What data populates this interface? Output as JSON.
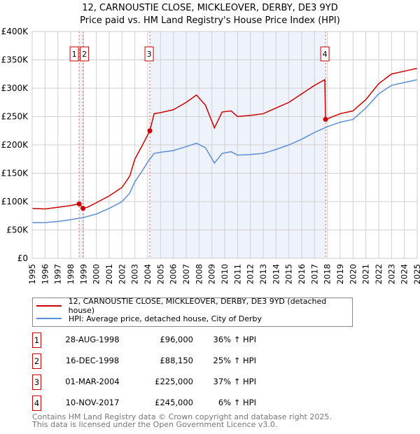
{
  "title": "12, CARNOUSTIE CLOSE, MICKLEOVER, DERBY, DE3 9YD",
  "subtitle": "Price paid vs. HM Land Registry's House Price Index (HPI)",
  "chart_data": {
    "type": "line",
    "xlim": [
      1995,
      2025
    ],
    "ylim": [
      0,
      400000
    ],
    "yticks": [
      0,
      50000,
      100000,
      150000,
      200000,
      250000,
      300000,
      350000,
      400000
    ],
    "ytick_labels": [
      "£0",
      "£50K",
      "£100K",
      "£150K",
      "£200K",
      "£250K",
      "£300K",
      "£350K",
      "£400K"
    ],
    "xticks": [
      1995,
      1996,
      1997,
      1998,
      1999,
      2000,
      2001,
      2002,
      2003,
      2004,
      2005,
      2006,
      2007,
      2008,
      2009,
      2010,
      2011,
      2012,
      2013,
      2014,
      2015,
      2016,
      2017,
      2018,
      2019,
      2020,
      2021,
      2022,
      2023,
      2024,
      2025
    ],
    "grid": true,
    "series": [
      {
        "name": "12, CARNOUSTIE CLOSE, MICKLEOVER, DERBY, DE3 9YD (detached house)",
        "color": "#cc0000",
        "x": [
          1995,
          1996,
          1997,
          1998,
          1998.66,
          1998.96,
          1999.3,
          2000,
          2001,
          2002,
          2002.6,
          2003,
          2003.6,
          2004.17,
          2004.5,
          2005,
          2006,
          2007,
          2007.8,
          2008.5,
          2009.2,
          2009.8,
          2010.5,
          2011,
          2012,
          2013,
          2014,
          2015,
          2016,
          2017,
          2017.8,
          2017.86,
          2018,
          2019,
          2020,
          2021,
          2022,
          2023,
          2024,
          2025
        ],
        "y": [
          88000,
          87000,
          90000,
          93000,
          96000,
          88150,
          90000,
          98000,
          110000,
          125000,
          145000,
          175000,
          200000,
          225000,
          255000,
          257000,
          262000,
          275000,
          288000,
          270000,
          230000,
          258000,
          260000,
          250000,
          252000,
          255000,
          265000,
          275000,
          290000,
          305000,
          315000,
          245000,
          246000,
          255000,
          260000,
          280000,
          308000,
          325000,
          330000,
          335000
        ]
      },
      {
        "name": "HPI: Average price, detached house, City of Derby",
        "color": "#5b8fd6",
        "x": [
          1995,
          1996,
          1997,
          1998,
          1999,
          2000,
          2001,
          2002,
          2002.6,
          2003,
          2003.6,
          2004,
          2004.5,
          2005,
          2006,
          2007,
          2007.8,
          2008.5,
          2009.2,
          2009.8,
          2010.5,
          2011,
          2012,
          2013,
          2014,
          2015,
          2016,
          2017,
          2018,
          2019,
          2020,
          2021,
          2022,
          2023,
          2024,
          2025
        ],
        "y": [
          63000,
          63000,
          65000,
          68000,
          72000,
          78000,
          88000,
          100000,
          115000,
          135000,
          155000,
          170000,
          185000,
          187000,
          190000,
          197000,
          203000,
          195000,
          168000,
          185000,
          188000,
          182000,
          183000,
          185000,
          192000,
          200000,
          210000,
          222000,
          232000,
          240000,
          245000,
          265000,
          290000,
          305000,
          310000,
          315000
        ]
      }
    ],
    "sales": [
      {
        "label": "1",
        "x": 1998.66,
        "price": 96000
      },
      {
        "label": "2",
        "x": 1998.96,
        "price": 88150
      },
      {
        "label": "3",
        "x": 2004.17,
        "price": 225000
      },
      {
        "label": "4",
        "x": 2017.86,
        "price": 245000
      }
    ],
    "shaded": [
      [
        1998.66,
        1998.96
      ],
      [
        2004.17,
        2017.86
      ]
    ]
  },
  "legend": {
    "property": "12, CARNOUSTIE CLOSE, MICKLEOVER, DERBY, DE3 9YD (detached house)",
    "hpi": "HPI: Average price, detached house, City of Derby"
  },
  "transactions": [
    {
      "n": "1",
      "date": "28-AUG-1998",
      "price": "£96,000",
      "hpi": "36% ↑ HPI"
    },
    {
      "n": "2",
      "date": "16-DEC-1998",
      "price": "£88,150",
      "hpi": "25% ↑ HPI"
    },
    {
      "n": "3",
      "date": "01-MAR-2004",
      "price": "£225,000",
      "hpi": "37% ↑ HPI"
    },
    {
      "n": "4",
      "date": "10-NOV-2017",
      "price": "£245,000",
      "hpi": "6% ↑ HPI"
    }
  ],
  "footer": {
    "line1": "Contains HM Land Registry data © Crown copyright and database right 2025.",
    "line2": "This data is licensed under the Open Government Licence v3.0."
  }
}
